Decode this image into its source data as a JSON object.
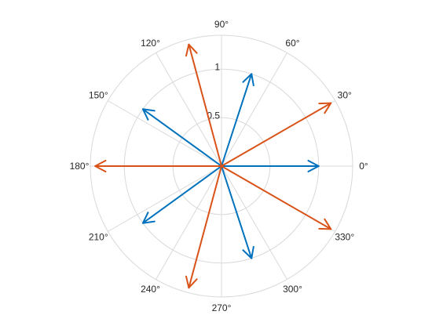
{
  "chart_data": {
    "type": "compass",
    "angle_tick_labels": [
      "0°",
      "30°",
      "60°",
      "90°",
      "120°",
      "150°",
      "180°",
      "210°",
      "240°",
      "270°",
      "300°",
      "330°"
    ],
    "angle_ticks_deg": [
      0,
      30,
      60,
      90,
      120,
      150,
      180,
      210,
      240,
      270,
      300,
      330
    ],
    "r_tick_labels": [
      "0.5",
      "1"
    ],
    "r_ticks": [
      0.5,
      1
    ],
    "rlim": [
      0,
      1.35
    ],
    "grid": true,
    "series": [
      {
        "color": "#0072BD",
        "vectors": [
          {
            "angle_deg": 0,
            "r": 1.0
          },
          {
            "angle_deg": 72,
            "r": 1.0
          },
          {
            "angle_deg": 144,
            "r": 1.0
          },
          {
            "angle_deg": 216,
            "r": 1.0
          },
          {
            "angle_deg": 288,
            "r": 1.0
          }
        ]
      },
      {
        "color": "#D95319",
        "vectors": [
          {
            "angle_deg": 30,
            "r": 1.3
          },
          {
            "angle_deg": 105,
            "r": 1.3
          },
          {
            "angle_deg": 180,
            "r": 1.3
          },
          {
            "angle_deg": 255,
            "r": 1.3
          },
          {
            "angle_deg": 330,
            "r": 1.3
          }
        ]
      }
    ]
  }
}
